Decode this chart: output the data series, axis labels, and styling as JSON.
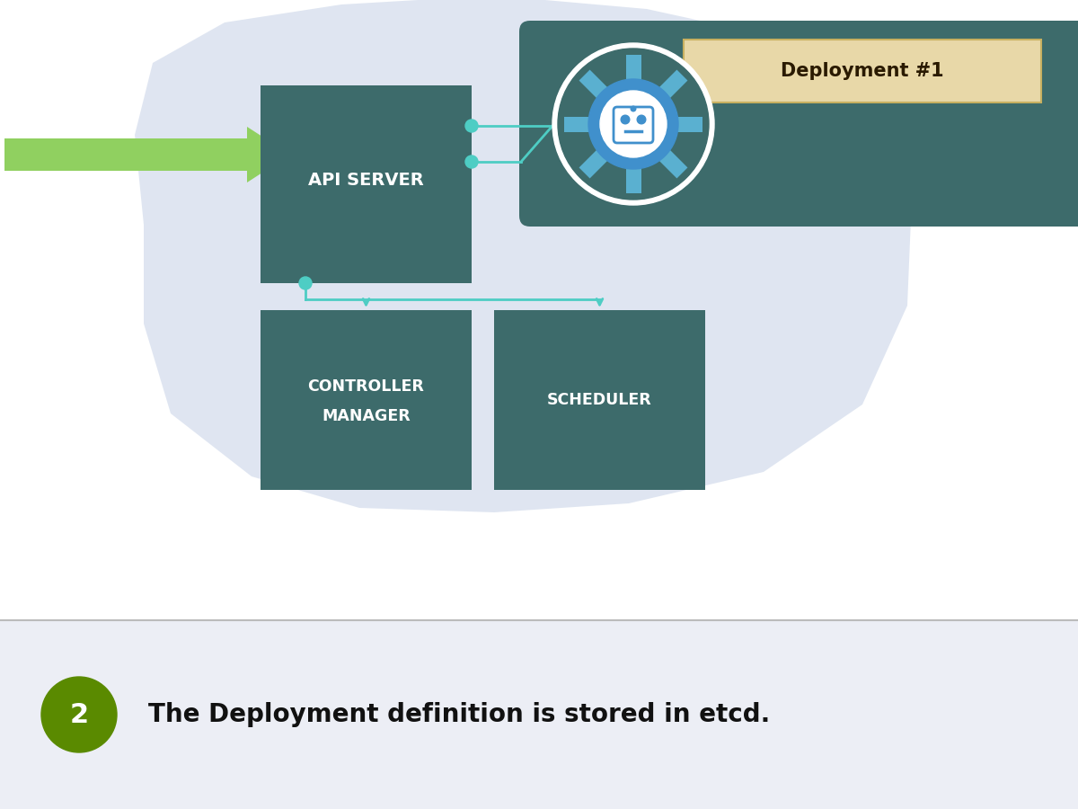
{
  "bg_color": "#ffffff",
  "bottom_panel_color": "#eceef5",
  "blob_color": "#dce3f0",
  "box_color": "#3d6b6b",
  "arrow_color": "#90d060",
  "connector_color": "#4ecdc4",
  "deployment_box_color": "#3d6b6b",
  "deployment_label_bg": "#e8d8a8",
  "deployment_label_text": "#2a1a00",
  "deployment_label": "Deployment #1",
  "api_server_label": "API SERVER",
  "controller_label1": "CONTROLLER",
  "controller_label2": "MANAGER",
  "scheduler_label": "SCHEDULER",
  "bottom_number": "2",
  "bottom_number_bg": "#5a8a00",
  "bottom_text": "The Deployment definition is stored in etcd.",
  "bottom_text_color": "#111111",
  "divider_color": "#bbbbbb",
  "gear_outer_color": "#3d6b6b",
  "gear_blue": "#4090cc",
  "gear_tooth_color": "#5ab0d0",
  "white": "#ffffff"
}
